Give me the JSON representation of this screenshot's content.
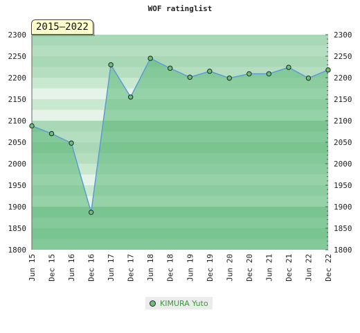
{
  "chart_data": {
    "type": "line",
    "title": "WOF ratinglist",
    "badge": "2015–2022",
    "x": [
      "Jun 15",
      "Dec 15",
      "Jun 16",
      "Dec 16",
      "Jun 17",
      "Dec 17",
      "Jun 18",
      "Dec 18",
      "Jun 19",
      "Dec 19",
      "Jun 20",
      "Dec 20",
      "Jun 21",
      "Dec 21",
      "Jun 22",
      "Dec 22"
    ],
    "series": [
      {
        "name": "KIMURA Yuto",
        "values": [
          2088,
          2070,
          2048,
          1887,
          2230,
          2155,
          2245,
          2222,
          2201,
          2215,
          2199,
          2209,
          2209,
          2224,
          2199,
          2218
        ]
      }
    ],
    "ylim": [
      1800,
      2300
    ],
    "yticks": [
      1800,
      1850,
      1900,
      1950,
      2000,
      2050,
      2100,
      2150,
      2200,
      2250,
      2300
    ],
    "grid": true,
    "legend": "bottom-center",
    "colors": {
      "line": "#5b9bd5",
      "fill": "#7fc497",
      "marker": "#6cbf7a",
      "band_light": "#f2f8f2",
      "band_mid": "#b5dec1",
      "band_dark": "#7cc492"
    }
  }
}
